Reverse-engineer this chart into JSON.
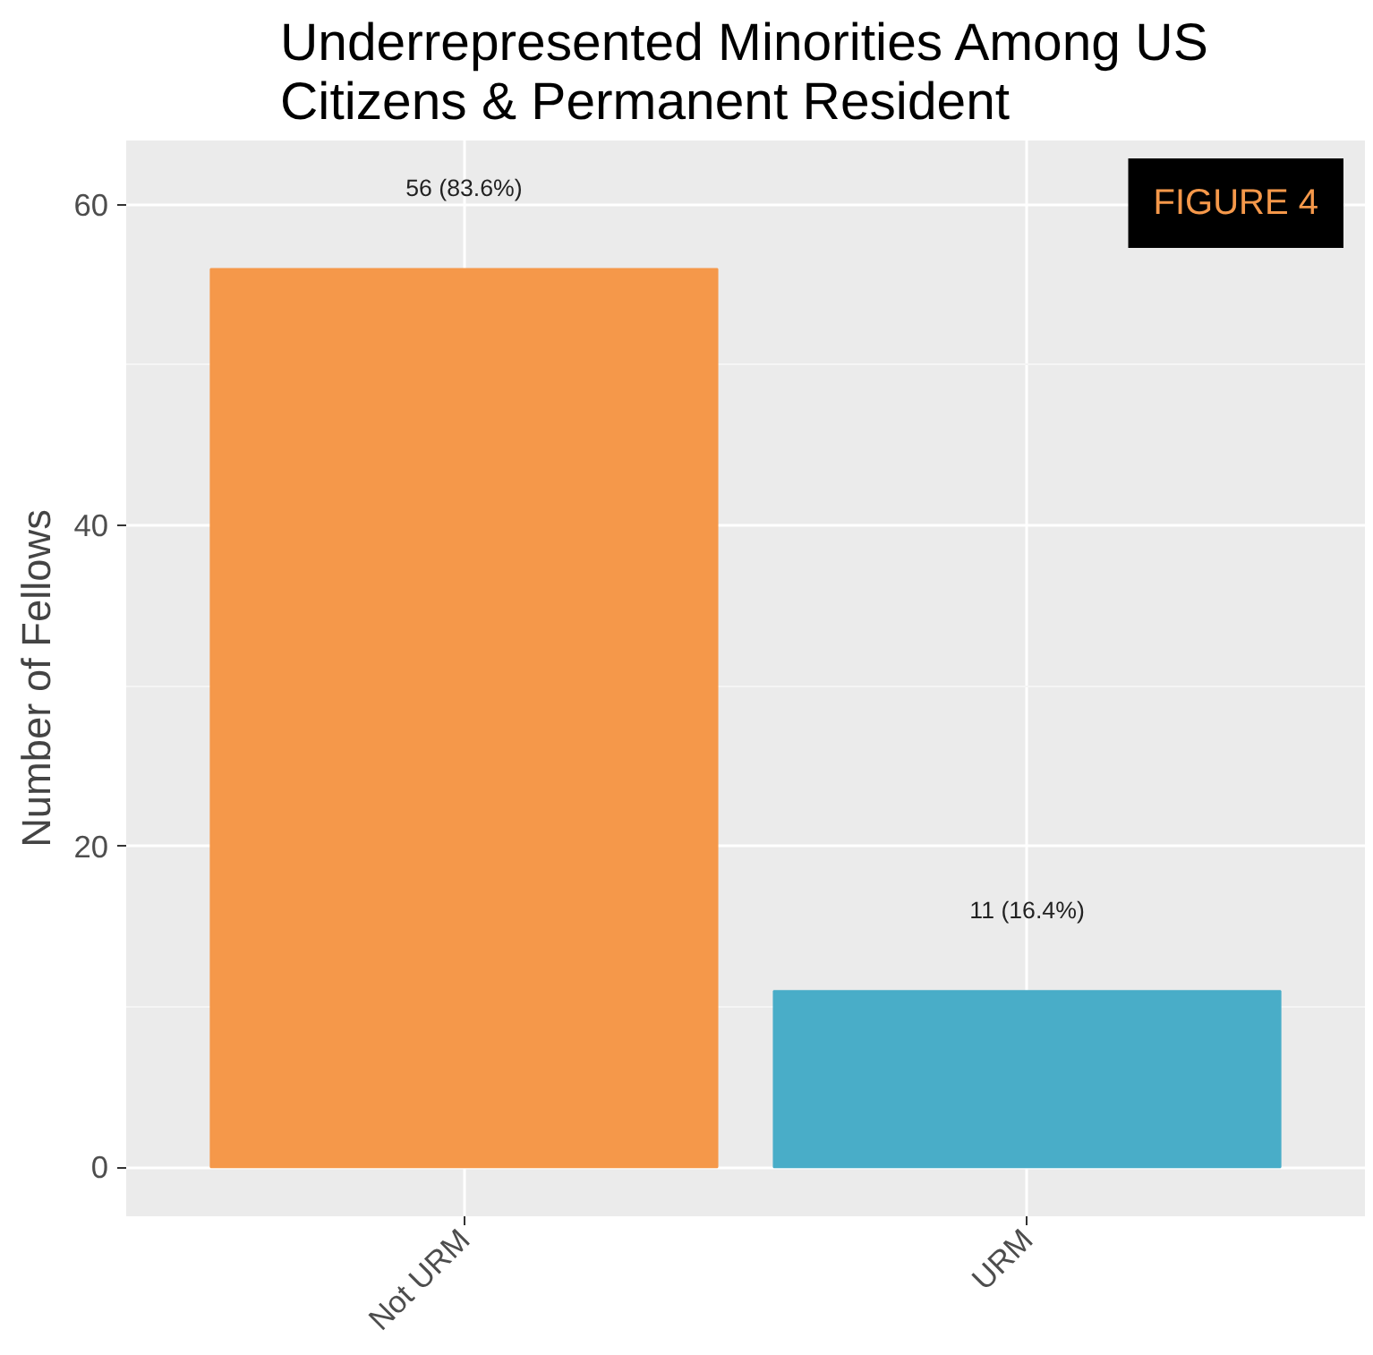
{
  "chart_data": {
    "type": "bar",
    "title": "Underrepresented Minorities Among US\nCitizens & Permanent Resident",
    "ylabel": "Number of Fellows",
    "categories": [
      "Not URM",
      "URM"
    ],
    "values": [
      56,
      11
    ],
    "colors": [
      "#f5984a",
      "#49adc8"
    ],
    "value_labels": [
      "56 (83.6%)",
      "11 (16.4%)"
    ],
    "ylim": [
      -3.05,
      64
    ],
    "yticks": [
      0,
      20,
      40,
      60
    ],
    "grid": true,
    "annotations": [
      "FIGURE 4"
    ]
  }
}
